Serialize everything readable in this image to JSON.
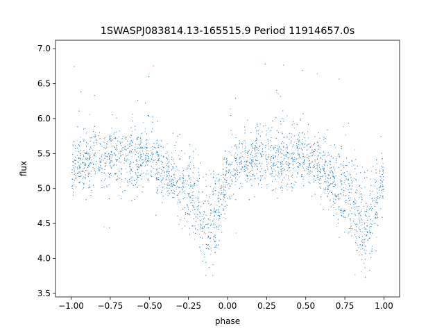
{
  "chart_data": {
    "type": "scatter",
    "title": "1SWASPJ083814.13-165515.9 Period 11914657.0s",
    "xlabel": "phase",
    "ylabel": "flux",
    "xlim": [
      -1.1,
      1.1
    ],
    "ylim": [
      3.45,
      7.12
    ],
    "x_ticks": [
      -1.0,
      -0.75,
      -0.5,
      -0.25,
      0.0,
      0.25,
      0.5,
      0.75,
      1.0
    ],
    "x_tick_labels": [
      "−1.00",
      "−0.75",
      "−0.50",
      "−0.25",
      "0.00",
      "0.25",
      "0.50",
      "0.75",
      "1.00"
    ],
    "y_ticks": [
      3.5,
      4.0,
      4.5,
      5.0,
      5.5,
      6.0,
      6.5,
      7.0
    ],
    "y_tick_labels": [
      "3.5",
      "4.0",
      "4.5",
      "5.0",
      "5.5",
      "6.0",
      "6.5",
      "7.0"
    ],
    "grid": false,
    "legend": "none",
    "marker_color": "#1f77b4",
    "phase_range": [
      -1.0,
      1.0
    ],
    "profile": {
      "phase": [
        0.0,
        0.04,
        0.08,
        0.12,
        0.16,
        0.2,
        0.24,
        0.28,
        0.32,
        0.36,
        0.4,
        0.44,
        0.48,
        0.52,
        0.56,
        0.6,
        0.64,
        0.68,
        0.72,
        0.76,
        0.8,
        0.84,
        0.88,
        0.92,
        0.96,
        1.0
      ],
      "mean_flux": [
        5.2,
        5.3,
        5.35,
        5.4,
        5.42,
        5.4,
        5.45,
        5.45,
        5.42,
        5.45,
        5.4,
        5.45,
        5.5,
        5.4,
        5.35,
        5.25,
        5.2,
        5.05,
        5.0,
        4.95,
        4.85,
        4.55,
        4.4,
        4.55,
        4.9,
        5.2
      ],
      "scatter": [
        0.2,
        0.2,
        0.2,
        0.22,
        0.22,
        0.22,
        0.22,
        0.22,
        0.22,
        0.22,
        0.22,
        0.22,
        0.22,
        0.22,
        0.2,
        0.2,
        0.2,
        0.25,
        0.28,
        0.3,
        0.3,
        0.32,
        0.32,
        0.3,
        0.25,
        0.2
      ]
    }
  }
}
